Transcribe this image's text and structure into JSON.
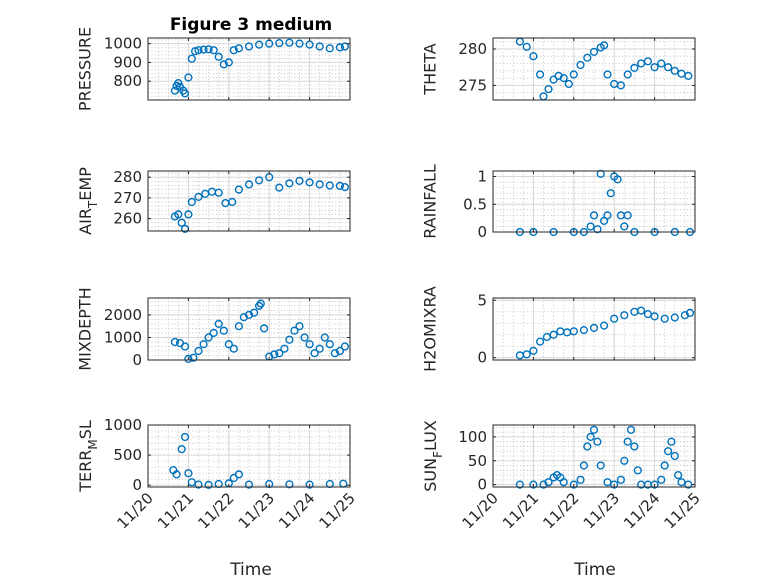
{
  "title": "Figure 3 medium",
  "xlabel": "Time",
  "x_ticks": [
    "11/20",
    "11/21",
    "11/22",
    "11/23",
    "11/24",
    "11/25"
  ],
  "marker_color": "#0072BD",
  "chart_data": [
    {
      "type": "scatter",
      "ylabel": "PRESSURE",
      "ylim": [
        700,
        1030
      ],
      "yticks": [
        800,
        900,
        1000
      ],
      "grid": "major+minor",
      "x": [
        "11/20 16:00",
        "11/20 17:00",
        "11/20 18:00",
        "11/20 19:00",
        "11/20 21:00",
        "11/20 22:00",
        "11/21 00:00",
        "11/21 02:00",
        "11/21 04:00",
        "11/21 06:00",
        "11/21 09:00",
        "11/21 12:00",
        "11/21 15:00",
        "11/21 18:00",
        "11/21 21:00",
        "11/22 00:00",
        "11/22 03:00",
        "11/22 06:00",
        "11/22 12:00",
        "11/22 18:00",
        "11/23 00:00",
        "11/23 06:00",
        "11/23 12:00",
        "11/23 18:00",
        "11/24 00:00",
        "11/24 06:00",
        "11/24 12:00",
        "11/24 18:00",
        "11/24 21:00"
      ],
      "y": [
        750,
        775,
        790,
        770,
        750,
        735,
        820,
        920,
        960,
        965,
        968,
        970,
        965,
        930,
        890,
        900,
        965,
        975,
        985,
        995,
        1000,
        1003,
        1005,
        1000,
        995,
        985,
        975,
        980,
        985
      ]
    },
    {
      "type": "scatter",
      "ylabel": "THETA",
      "ylim": [
        273,
        281.5
      ],
      "yticks": [
        275,
        280
      ],
      "grid": "major+minor",
      "x": [
        "11/20 16:00",
        "11/20 20:00",
        "11/21 00:00",
        "11/21 04:00",
        "11/21 06:00",
        "11/21 09:00",
        "11/21 12:00",
        "11/21 15:00",
        "11/21 18:00",
        "11/21 21:00",
        "11/22 00:00",
        "11/22 04:00",
        "11/22 08:00",
        "11/22 12:00",
        "11/22 16:00",
        "11/22 18:00",
        "11/22 20:00",
        "11/23 00:00",
        "11/23 04:00",
        "11/23 08:00",
        "11/23 12:00",
        "11/23 16:00",
        "11/23 20:00",
        "11/24 00:00",
        "11/24 04:00",
        "11/24 08:00",
        "11/24 12:00",
        "11/24 16:00",
        "11/24 20:00"
      ],
      "y": [
        281,
        280.3,
        279,
        276.5,
        273.5,
        274.5,
        275.8,
        276.3,
        276,
        275.2,
        276.5,
        277.8,
        278.8,
        279.6,
        280.2,
        280.5,
        276.5,
        275.2,
        275,
        276.5,
        277.4,
        278,
        278.3,
        277.5,
        278,
        277.5,
        277,
        276.6,
        276.3
      ]
    },
    {
      "type": "scatter",
      "ylabel": "AIR_TEMP",
      "ylim": [
        254,
        283
      ],
      "yticks": [
        260,
        270,
        280
      ],
      "grid": "major+minor",
      "x": [
        "11/20 16:00",
        "11/20 18:00",
        "11/20 20:00",
        "11/20 22:00",
        "11/21 00:00",
        "11/21 02:00",
        "11/21 06:00",
        "11/21 10:00",
        "11/21 14:00",
        "11/21 18:00",
        "11/21 22:00",
        "11/22 02:00",
        "11/22 06:00",
        "11/22 12:00",
        "11/22 18:00",
        "11/23 00:00",
        "11/23 06:00",
        "11/23 12:00",
        "11/23 18:00",
        "11/24 00:00",
        "11/24 06:00",
        "11/24 12:00",
        "11/24 18:00",
        "11/24 21:00"
      ],
      "y": [
        261,
        262,
        258,
        255,
        262,
        268,
        270.5,
        272,
        273,
        272.5,
        267.5,
        268,
        274,
        276.5,
        278.5,
        280,
        275,
        277,
        278.2,
        277.5,
        276.5,
        276,
        275.8,
        275.2
      ]
    },
    {
      "type": "scatter",
      "ylabel": "RAINFALL",
      "ylim": [
        0,
        1.1
      ],
      "yticks": [
        0,
        0.5,
        1
      ],
      "grid": "major+minor",
      "x": [
        "11/20 16:00",
        "11/21 00:00",
        "11/21 12:00",
        "11/22 00:00",
        "11/22 06:00",
        "11/22 10:00",
        "11/22 12:00",
        "11/22 14:00",
        "11/22 16:00",
        "11/22 18:00",
        "11/22 20:00",
        "11/22 22:00",
        "11/23 00:00",
        "11/23 02:00",
        "11/23 04:00",
        "11/23 06:00",
        "11/23 08:00",
        "11/23 12:00",
        "11/24 00:00",
        "11/24 12:00",
        "11/24 21:00"
      ],
      "y": [
        0,
        0,
        0,
        0,
        0,
        0.1,
        0.3,
        0.05,
        1.05,
        0.2,
        0.3,
        0.7,
        1,
        0.95,
        0.3,
        0.1,
        0.3,
        0,
        0,
        0,
        0
      ]
    },
    {
      "type": "scatter",
      "ylabel": "MIXDEPTH",
      "ylim": [
        0,
        2750
      ],
      "yticks": [
        0,
        1000,
        2000
      ],
      "grid": "major+minor",
      "x": [
        "11/20 16:00",
        "11/20 19:00",
        "11/20 22:00",
        "11/21 00:00",
        "11/21 03:00",
        "11/21 06:00",
        "11/21 09:00",
        "11/21 12:00",
        "11/21 15:00",
        "11/21 18:00",
        "11/21 21:00",
        "11/22 00:00",
        "11/22 03:00",
        "11/22 06:00",
        "11/22 09:00",
        "11/22 12:00",
        "11/22 15:00",
        "11/22 18:00",
        "11/22 19:00",
        "11/22 21:00",
        "11/23 00:00",
        "11/23 03:00",
        "11/23 06:00",
        "11/23 09:00",
        "11/23 12:00",
        "11/23 15:00",
        "11/23 18:00",
        "11/23 21:00",
        "11/24 00:00",
        "11/24 03:00",
        "11/24 06:00",
        "11/24 09:00",
        "11/24 12:00",
        "11/24 15:00",
        "11/24 18:00",
        "11/24 21:00"
      ],
      "y": [
        800,
        750,
        600,
        50,
        100,
        400,
        700,
        1000,
        1200,
        1600,
        1300,
        700,
        500,
        1500,
        1900,
        2000,
        2100,
        2400,
        2500,
        1400,
        150,
        250,
        300,
        500,
        900,
        1300,
        1500,
        1000,
        700,
        300,
        500,
        1000,
        700,
        300,
        400,
        600
      ]
    },
    {
      "type": "scatter",
      "ylabel": "H2OMIXRA",
      "ylim": [
        -0.2,
        5.2
      ],
      "yticks": [
        0,
        5
      ],
      "grid": "major+minor",
      "x": [
        "11/20 16:00",
        "11/20 20:00",
        "11/21 00:00",
        "11/21 04:00",
        "11/21 08:00",
        "11/21 12:00",
        "11/21 16:00",
        "11/21 20:00",
        "11/22 00:00",
        "11/22 06:00",
        "11/22 12:00",
        "11/22 18:00",
        "11/23 00:00",
        "11/23 06:00",
        "11/23 12:00",
        "11/23 16:00",
        "11/23 20:00",
        "11/24 00:00",
        "11/24 06:00",
        "11/24 12:00",
        "11/24 18:00",
        "11/24 21:00"
      ],
      "y": [
        0.2,
        0.3,
        0.6,
        1.4,
        1.8,
        2,
        2.3,
        2.2,
        2.3,
        2.4,
        2.6,
        2.8,
        3.4,
        3.7,
        4,
        4.1,
        3.8,
        3.6,
        3.4,
        3.5,
        3.7,
        3.9
      ]
    },
    {
      "type": "scatter",
      "ylabel": "TERR_MSL",
      "ylim": [
        -30,
        1000
      ],
      "yticks": [
        0,
        500,
        1000
      ],
      "grid": "major+minor",
      "x": [
        "11/20 15:00",
        "11/20 17:00",
        "11/20 20:00",
        "11/20 22:00",
        "11/21 00:00",
        "11/21 02:00",
        "11/21 06:00",
        "11/21 12:00",
        "11/21 18:00",
        "11/22 00:00",
        "11/22 03:00",
        "11/22 06:00",
        "11/22 12:00",
        "11/23 00:00",
        "11/23 12:00",
        "11/24 00:00",
        "11/24 12:00",
        "11/24 20:00"
      ],
      "y": [
        250,
        180,
        600,
        800,
        200,
        50,
        10,
        5,
        20,
        30,
        120,
        180,
        10,
        20,
        15,
        10,
        20,
        25
      ]
    },
    {
      "type": "scatter",
      "ylabel": "SUN_FLUX",
      "ylim": [
        -5,
        125
      ],
      "yticks": [
        0,
        50,
        100
      ],
      "grid": "major+minor",
      "x": [
        "11/20 16:00",
        "11/21 00:00",
        "11/21 06:00",
        "11/21 09:00",
        "11/21 12:00",
        "11/21 14:00",
        "11/21 16:00",
        "11/21 18:00",
        "11/22 00:00",
        "11/22 04:00",
        "11/22 06:00",
        "11/22 08:00",
        "11/22 10:00",
        "11/22 12:00",
        "11/22 14:00",
        "11/22 16:00",
        "11/22 20:00",
        "11/23 00:00",
        "11/23 04:00",
        "11/23 06:00",
        "11/23 08:00",
        "11/23 10:00",
        "11/23 12:00",
        "11/23 14:00",
        "11/23 16:00",
        "11/23 20:00",
        "11/24 00:00",
        "11/24 04:00",
        "11/24 06:00",
        "11/24 08:00",
        "11/24 10:00",
        "11/24 12:00",
        "11/24 14:00",
        "11/24 16:00",
        "11/24 20:00"
      ],
      "y": [
        0,
        0,
        0,
        5,
        15,
        20,
        15,
        5,
        0,
        10,
        40,
        80,
        100,
        115,
        90,
        40,
        5,
        0,
        10,
        50,
        90,
        115,
        80,
        30,
        0,
        0,
        0,
        10,
        40,
        70,
        90,
        60,
        20,
        5,
        0
      ]
    }
  ]
}
